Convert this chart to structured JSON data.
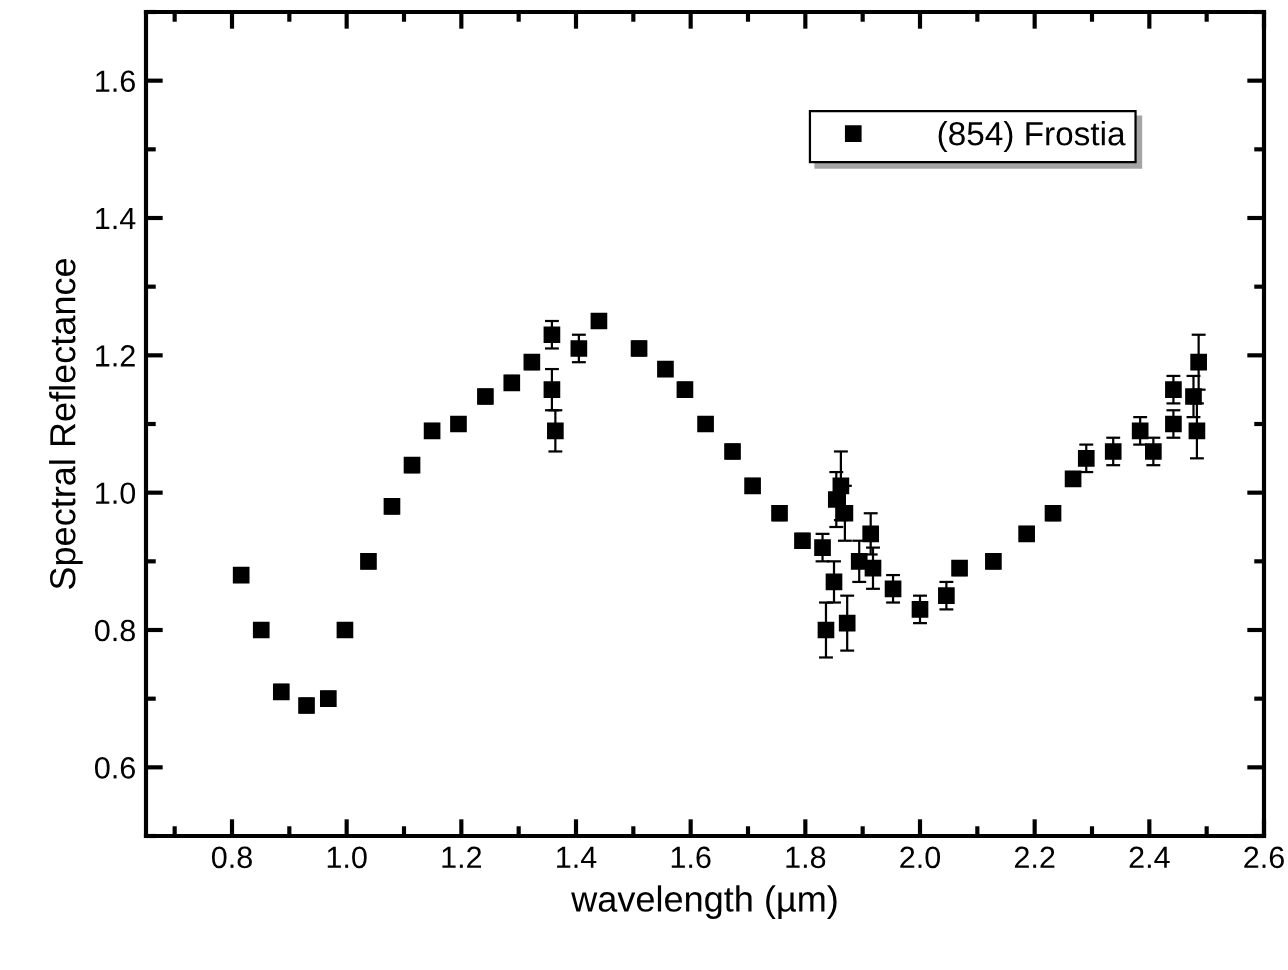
{
  "chart_data": {
    "type": "scatter",
    "xlabel": "wavelength (µm)",
    "ylabel": "Spectral Reflectance",
    "xlim": [
      0.65,
      2.6
    ],
    "ylim": [
      0.5,
      1.7
    ],
    "xticks": [
      {
        "value": 0.7,
        "label": null
      },
      0.8,
      {
        "value": 0.9,
        "label": null
      },
      {
        "value": 1.0,
        "label": "1.0"
      },
      {
        "value": 1.1,
        "label": null
      },
      1.2,
      {
        "value": 1.3,
        "label": null
      },
      1.4,
      {
        "value": 1.5,
        "label": null
      },
      1.6,
      {
        "value": 1.7,
        "label": null
      },
      1.8,
      {
        "value": 1.9,
        "label": null
      },
      {
        "value": 2.0,
        "label": "2.0"
      },
      {
        "value": 2.1,
        "label": null
      },
      2.2,
      {
        "value": 2.3,
        "label": null
      },
      2.4,
      {
        "value": 2.5,
        "label": null
      },
      2.6
    ],
    "yticks": [
      {
        "value": 0.5,
        "label": null
      },
      0.6,
      {
        "value": 0.7,
        "label": null
      },
      0.8,
      {
        "value": 0.9,
        "label": null
      },
      {
        "value": 1.0,
        "label": "1.0"
      },
      {
        "value": 1.1,
        "label": null
      },
      1.2,
      {
        "value": 1.3,
        "label": null
      },
      1.4,
      {
        "value": 1.5,
        "label": null
      },
      1.6,
      {
        "value": 1.7,
        "label": null
      }
    ],
    "marker": "square",
    "grid": false,
    "legend": "top right",
    "series": [
      {
        "name": "(854) Frostia",
        "color": "#000000",
        "x": [
          0.816,
          0.851,
          0.886,
          0.93,
          0.968,
          0.997,
          1.038,
          1.079,
          1.114,
          1.149,
          1.195,
          1.242,
          1.288,
          1.323,
          1.358,
          1.358,
          1.364,
          1.405,
          1.44,
          1.51,
          1.556,
          1.59,
          1.626,
          1.673,
          1.708,
          1.755,
          1.795,
          1.83,
          1.836,
          1.85,
          1.854,
          1.862,
          1.869,
          1.873,
          1.894,
          1.914,
          1.918,
          1.953,
          2.0,
          2.046,
          2.069,
          2.128,
          2.186,
          2.232,
          2.267,
          2.29,
          2.337,
          2.384,
          2.407,
          2.442,
          2.442,
          2.477,
          2.483,
          2.486
        ],
        "values": [
          0.88,
          0.8,
          0.71,
          0.69,
          0.7,
          0.8,
          0.9,
          0.98,
          1.04,
          1.09,
          1.1,
          1.14,
          1.16,
          1.19,
          1.23,
          1.15,
          1.09,
          1.21,
          1.25,
          1.21,
          1.18,
          1.15,
          1.1,
          1.06,
          1.01,
          0.97,
          0.93,
          0.92,
          0.8,
          0.87,
          0.99,
          1.01,
          0.97,
          0.81,
          0.9,
          0.94,
          0.89,
          0.86,
          0.83,
          0.85,
          0.89,
          0.9,
          0.94,
          0.97,
          1.02,
          1.05,
          1.06,
          1.09,
          1.06,
          1.1,
          1.15,
          1.14,
          1.09,
          1.19
        ],
        "errors": [
          0.01,
          0.01,
          0.01,
          0.01,
          0.01,
          0.01,
          0.01,
          0.01,
          0.01,
          0.01,
          0.01,
          0.01,
          0.01,
          0.01,
          0.02,
          0.03,
          0.03,
          0.02,
          0.01,
          0.01,
          0.01,
          0.01,
          0.01,
          0.01,
          0.01,
          0.01,
          0.01,
          0.02,
          0.04,
          0.03,
          0.04,
          0.05,
          0.04,
          0.04,
          0.03,
          0.03,
          0.03,
          0.02,
          0.02,
          0.02,
          0.01,
          0.01,
          0.01,
          0.01,
          0.01,
          0.02,
          0.02,
          0.02,
          0.02,
          0.02,
          0.02,
          0.03,
          0.04,
          0.04
        ]
      }
    ]
  }
}
